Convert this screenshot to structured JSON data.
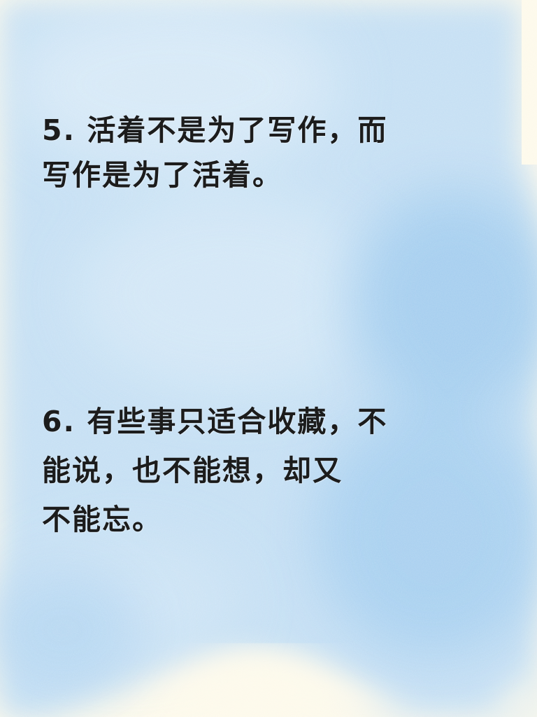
{
  "background": {
    "base_color": "#fdf9ea",
    "wash_color": "#b9d9f2",
    "wash_color_deep": "#9ccbee"
  },
  "quotes": [
    {
      "lines": [
        "5. 活着不是为了写作，而",
        "写作是为了活着。"
      ]
    },
    {
      "lines": [
        "6. 有些事只适合收藏，不",
        "能说，也不能想，却又",
        "不能忘。"
      ]
    }
  ]
}
